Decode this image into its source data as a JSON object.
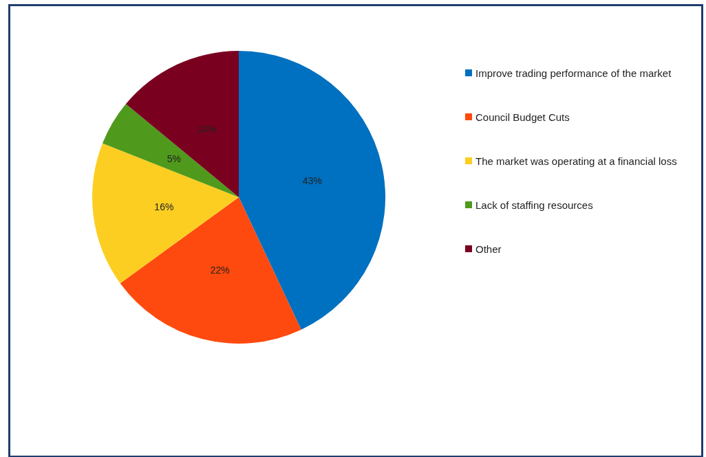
{
  "chart_data": {
    "type": "pie",
    "categories": [
      "Improve trading performance of the market",
      "Council Budget Cuts",
      "The market was operating at a financial loss",
      "Lack of staffing resources",
      "Other"
    ],
    "values": [
      43,
      22,
      16,
      5,
      14
    ],
    "value_labels": [
      "43%",
      "22%",
      "16%",
      "5%",
      "14%"
    ],
    "colors": [
      "#0070c0",
      "#fe4a0e",
      "#fdce22",
      "#4f9a1c",
      "#7a0020"
    ],
    "legend": "right"
  }
}
